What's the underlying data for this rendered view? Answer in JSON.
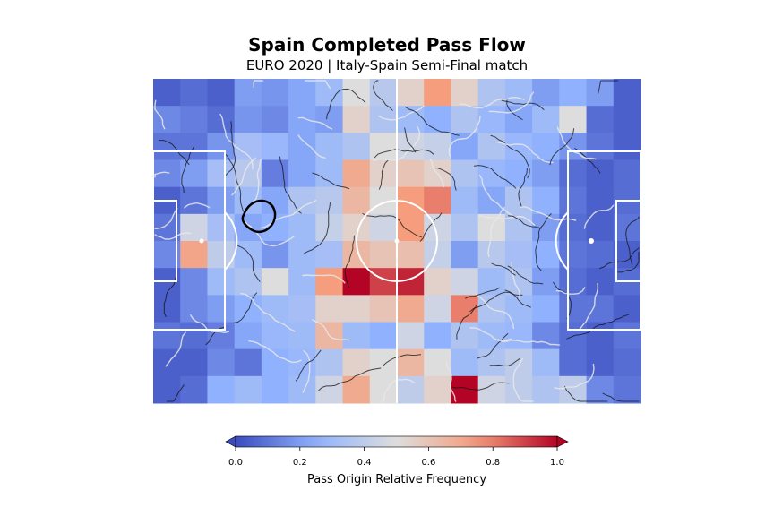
{
  "title": "Spain Completed Pass Flow",
  "subtitle": "EURO 2020 | Italy-Spain Semi-Final match",
  "colorbar": {
    "label": "Pass Origin Relative Frequency",
    "ticks": [
      "0.0",
      "0.2",
      "0.4",
      "0.6",
      "0.8",
      "1.0"
    ],
    "range": [
      0,
      1
    ],
    "extend": "both",
    "colormap": "coolwarm"
  },
  "chart_data": {
    "type": "heatmap",
    "title": "Spain Completed Pass Flow",
    "subtitle": "EURO 2020 | Italy-Spain Semi-Final match",
    "grid": {
      "columns": 18,
      "rows": 12
    },
    "value_range": [
      0,
      1
    ],
    "values": [
      [
        0.05,
        0.08,
        0.05,
        0.2,
        0.18,
        0.22,
        0.3,
        0.5,
        0.38,
        0.55,
        0.75,
        0.55,
        0.35,
        0.3,
        0.2,
        0.25,
        0.2,
        0.05
      ],
      [
        0.15,
        0.12,
        0.08,
        0.18,
        0.15,
        0.22,
        0.2,
        0.55,
        0.35,
        0.3,
        0.25,
        0.35,
        0.28,
        0.22,
        0.3,
        0.5,
        0.08,
        0.05
      ],
      [
        0.1,
        0.1,
        0.18,
        0.32,
        0.28,
        0.22,
        0.3,
        0.35,
        0.5,
        0.45,
        0.42,
        0.22,
        0.35,
        0.28,
        0.25,
        0.18,
        0.1,
        0.05
      ],
      [
        0.15,
        0.2,
        0.32,
        0.38,
        0.12,
        0.22,
        0.3,
        0.7,
        0.55,
        0.6,
        0.55,
        0.35,
        0.28,
        0.25,
        0.2,
        0.08,
        0.05,
        0.08
      ],
      [
        0.05,
        0.1,
        0.2,
        0.3,
        0.22,
        0.35,
        0.38,
        0.65,
        0.5,
        0.75,
        0.8,
        0.3,
        0.22,
        0.35,
        0.25,
        0.1,
        0.05,
        0.08
      ],
      [
        0.1,
        0.45,
        0.32,
        0.22,
        0.25,
        0.3,
        0.42,
        0.55,
        0.45,
        0.75,
        0.45,
        0.35,
        0.5,
        0.35,
        0.2,
        0.08,
        0.05,
        0.1
      ],
      [
        0.15,
        0.72,
        0.4,
        0.3,
        0.18,
        0.3,
        0.32,
        0.65,
        0.6,
        0.62,
        0.42,
        0.2,
        0.38,
        0.32,
        0.25,
        0.1,
        0.08,
        0.05
      ],
      [
        0.05,
        0.15,
        0.3,
        0.35,
        0.5,
        0.3,
        0.75,
        1.0,
        0.9,
        0.95,
        0.55,
        0.45,
        0.3,
        0.35,
        0.2,
        0.08,
        0.05,
        0.08
      ],
      [
        0.05,
        0.15,
        0.2,
        0.25,
        0.3,
        0.32,
        0.55,
        0.55,
        0.6,
        0.7,
        0.45,
        0.8,
        0.35,
        0.3,
        0.25,
        0.1,
        0.1,
        0.05
      ],
      [
        0.1,
        0.08,
        0.12,
        0.22,
        0.28,
        0.3,
        0.65,
        0.3,
        0.25,
        0.45,
        0.25,
        0.35,
        0.3,
        0.28,
        0.15,
        0.08,
        0.05,
        0.1
      ],
      [
        0.05,
        0.05,
        0.15,
        0.1,
        0.25,
        0.28,
        0.35,
        0.55,
        0.5,
        0.65,
        0.5,
        0.3,
        0.35,
        0.4,
        0.3,
        0.08,
        0.05,
        0.08
      ],
      [
        0.05,
        0.08,
        0.25,
        0.3,
        0.25,
        0.3,
        0.45,
        0.7,
        0.5,
        0.4,
        0.55,
        1.0,
        0.45,
        0.4,
        0.35,
        0.4,
        0.15,
        0.1
      ]
    ],
    "legend": "colorbar-bottom",
    "colorbar_label": "Pass Origin Relative Frequency"
  }
}
